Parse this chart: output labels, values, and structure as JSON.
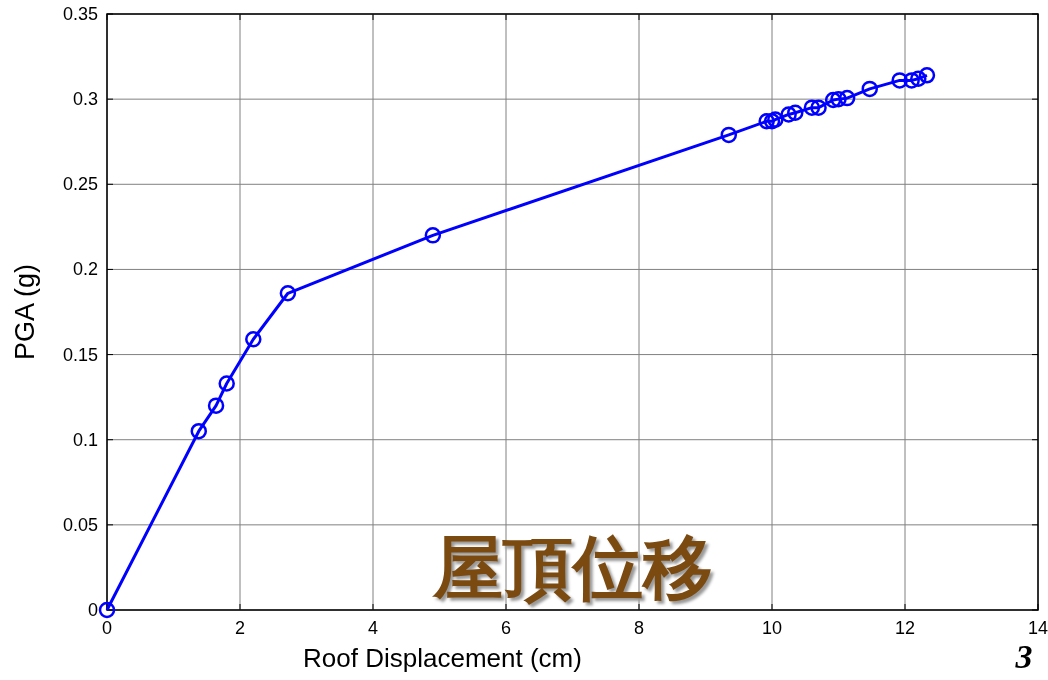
{
  "chart_data": {
    "type": "line",
    "xlabel": "Roof Displacement (cm)",
    "ylabel": "PGA (g)",
    "annotations": [
      "屋頂位移",
      "3"
    ],
    "xlim": [
      0,
      14
    ],
    "xticks": [
      0,
      2,
      4,
      6,
      8,
      10,
      12,
      14
    ],
    "ylim": [
      0,
      0.35
    ],
    "yticks": [
      0,
      0.05,
      0.1,
      0.15,
      0.2,
      0.25,
      0.3,
      0.35
    ],
    "grid": true,
    "marker": "circle",
    "line_style": "solid",
    "series": [
      {
        "color": "#0000ff",
        "x": [
          0,
          1.38,
          1.64,
          1.8,
          2.2,
          2.72,
          4.9,
          9.35,
          9.92,
          10.0,
          10.05,
          10.25,
          10.35,
          10.6,
          10.7,
          10.92,
          11.0,
          11.13,
          11.47,
          11.92,
          12.1,
          12.2,
          12.33
        ],
        "values": [
          0,
          0.105,
          0.12,
          0.133,
          0.159,
          0.186,
          0.22,
          0.279,
          0.287,
          0.287,
          0.288,
          0.291,
          0.292,
          0.295,
          0.295,
          0.2995,
          0.3,
          0.3006,
          0.306,
          0.311,
          0.311,
          0.312,
          0.314
        ]
      }
    ]
  }
}
